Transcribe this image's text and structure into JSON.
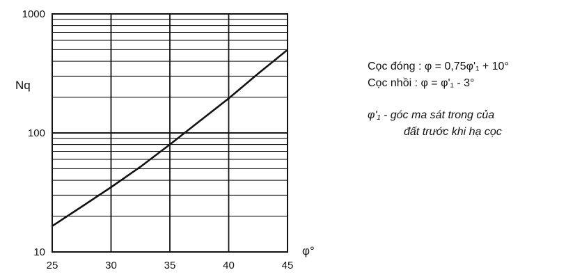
{
  "chart_data": {
    "type": "line",
    "xlabel": "φ°",
    "ylabel": "Nq",
    "xlim": [
      25,
      45
    ],
    "ylim": [
      10,
      1000
    ],
    "yscale": "log",
    "grid": true,
    "x_ticks": [
      "25",
      "30",
      "35",
      "40",
      "45"
    ],
    "y_ticks": [
      "10",
      "100",
      "1000"
    ],
    "series": [
      {
        "x": [
          25,
          27.5,
          30,
          32.5,
          35,
          37.5,
          40,
          42.5,
          45
        ],
        "y": [
          16.5,
          24,
          35,
          52,
          80,
          125,
          195,
          315,
          500
        ]
      }
    ],
    "annotations": {
      "line1": "Cọc đóng : φ = 0,75φ'₁ + 10°",
      "line2": "Cọc nhồi :  φ = φ'₁ - 3°",
      "line3": "φ'₁ - góc ma sát trong của",
      "line4": "đất trước khi hạ cọc"
    }
  }
}
